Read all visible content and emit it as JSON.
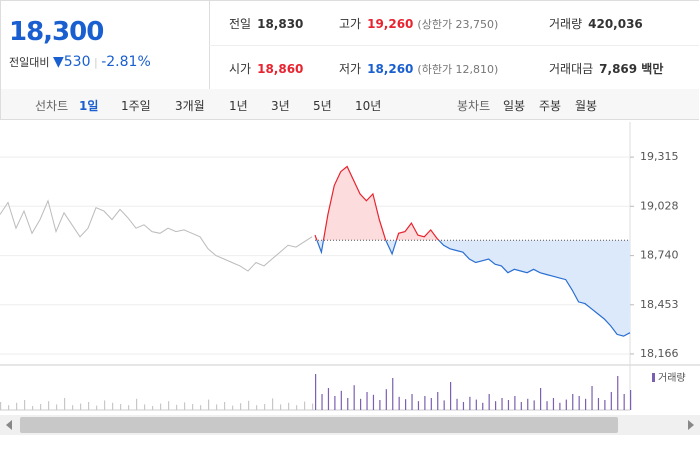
{
  "quote": {
    "price": "18,300",
    "change_label": "전일대비",
    "change": "530",
    "change_pct": "-2.81%",
    "cells": [
      {
        "label": "전일",
        "value": "18,830"
      },
      {
        "label": "고가",
        "value": "19,260",
        "note": "(상한가 23,750)"
      },
      {
        "label": "거래량",
        "value": "420,036"
      },
      {
        "label": "시가",
        "value": "18,860"
      },
      {
        "label": "저가",
        "value": "18,260",
        "note": "(하한가 12,810)"
      },
      {
        "label": "거래대금",
        "value": "7,869 백만"
      }
    ]
  },
  "tabs": {
    "line_label": "선차트",
    "line_items": [
      "1일",
      "1주일",
      "3개월",
      "1년",
      "3년",
      "5년",
      "10년"
    ],
    "candle_label": "봉차트",
    "candle_items": [
      "일봉",
      "주봉",
      "월봉"
    ]
  },
  "chart_data": [
    {
      "type": "line",
      "ylim": [
        18119,
        19520
      ],
      "baseline": 18830,
      "yticks": [
        {
          "value": 19315,
          "label": "19,315"
        },
        {
          "value": 19028,
          "label": "19,028"
        },
        {
          "value": 18740,
          "label": "18,740"
        },
        {
          "value": 18453,
          "label": "18,453"
        },
        {
          "value": 18166,
          "label": "18,166"
        }
      ],
      "series": [
        {
          "color": "#bbbbbb",
          "values": [
            18980,
            19050,
            18900,
            19000,
            18870,
            18950,
            19060,
            18880,
            18990,
            18920,
            18850,
            18900,
            19020,
            19000,
            18950,
            19010,
            18960,
            18900,
            18920,
            18880,
            18870,
            18900,
            18880,
            18890,
            18870,
            18850,
            18780,
            18740,
            18720,
            18700,
            18680,
            18650,
            18700,
            18680,
            18720,
            18760,
            18800,
            18790,
            18820,
            18850
          ]
        },
        {
          "color": "#2a6fd1",
          "up_color": "#e8232f",
          "values": [
            18860,
            18760,
            18980,
            19150,
            19230,
            19260,
            19180,
            19100,
            19060,
            19100,
            18950,
            18830,
            18750,
            18870,
            18880,
            18930,
            18860,
            18850,
            18890,
            18840,
            18800,
            18780,
            18770,
            18760,
            18720,
            18700,
            18710,
            18720,
            18690,
            18680,
            18640,
            18660,
            18650,
            18640,
            18660,
            18640,
            18630,
            18620,
            18610,
            18600,
            18540,
            18470,
            18460,
            18430,
            18400,
            18370,
            18330,
            18280,
            18270,
            18290
          ]
        }
      ]
    },
    {
      "type": "bar",
      "ylim": [
        0,
        100
      ],
      "series": [
        {
          "color": "#c8c8c8",
          "values": [
            20,
            12,
            18,
            25,
            10,
            15,
            22,
            14,
            30,
            12,
            16,
            20,
            11,
            24,
            18,
            15,
            12,
            28,
            14,
            10,
            16,
            22,
            13,
            19,
            15,
            12,
            26,
            14,
            20,
            11,
            17,
            23,
            12,
            15,
            29,
            14,
            18,
            12,
            21,
            16
          ]
        },
        {
          "name": "거래량",
          "color": "#7b5fb0",
          "values": [
            90,
            40,
            55,
            35,
            48,
            30,
            62,
            28,
            45,
            38,
            25,
            52,
            80,
            33,
            27,
            40,
            22,
            35,
            30,
            45,
            24,
            70,
            28,
            20,
            33,
            26,
            18,
            40,
            22,
            30,
            25,
            35,
            20,
            28,
            24,
            55,
            22,
            30,
            18,
            26,
            40,
            35,
            28,
            60,
            30,
            25,
            45,
            85,
            40,
            50
          ]
        }
      ]
    }
  ]
}
